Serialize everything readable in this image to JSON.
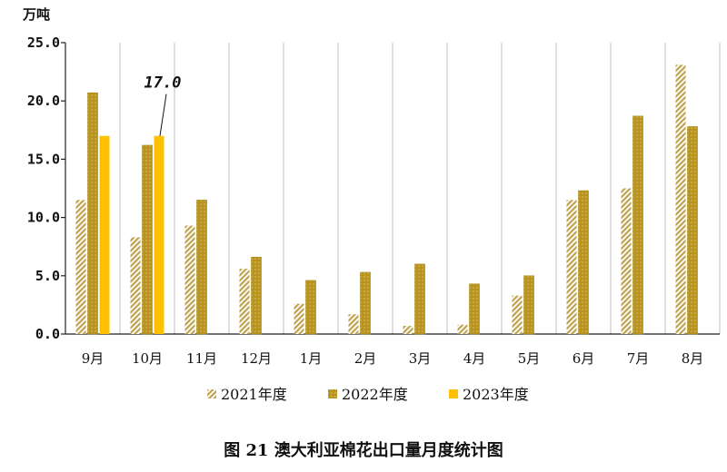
{
  "chart_data": {
    "type": "bar",
    "unit": "万吨",
    "categories": [
      "9月",
      "10月",
      "11月",
      "12月",
      "1月",
      "2月",
      "3月",
      "4月",
      "5月",
      "6月",
      "7月",
      "8月"
    ],
    "series": [
      {
        "name": "2021年度",
        "color": "#C9B064",
        "pattern": "diagonal-hatch",
        "values": [
          11.5,
          8.3,
          9.3,
          5.6,
          2.6,
          1.7,
          0.7,
          0.8,
          3.3,
          11.5,
          12.5,
          23.1
        ]
      },
      {
        "name": "2022年度",
        "color": "#B8941F",
        "pattern": "dotted",
        "values": [
          20.7,
          16.2,
          11.5,
          6.6,
          4.6,
          5.3,
          6.0,
          4.3,
          5.0,
          12.3,
          18.7,
          17.8
        ]
      },
      {
        "name": "2023年度",
        "color": "#FFC000",
        "pattern": "solid",
        "values": [
          17.0,
          17.0,
          null,
          null,
          null,
          null,
          null,
          null,
          null,
          null,
          null,
          null
        ]
      }
    ],
    "yticks": [
      "0.0",
      "5.0",
      "10.0",
      "15.0",
      "20.0",
      "25.0"
    ],
    "ylim": [
      0,
      25
    ],
    "grid": "vertical-category-lines",
    "legend_position": "bottom",
    "annotation": {
      "text": "17.0",
      "series": 2,
      "category": 1
    },
    "caption": "图 21   澳大利亚棉花出口量月度统计图"
  }
}
